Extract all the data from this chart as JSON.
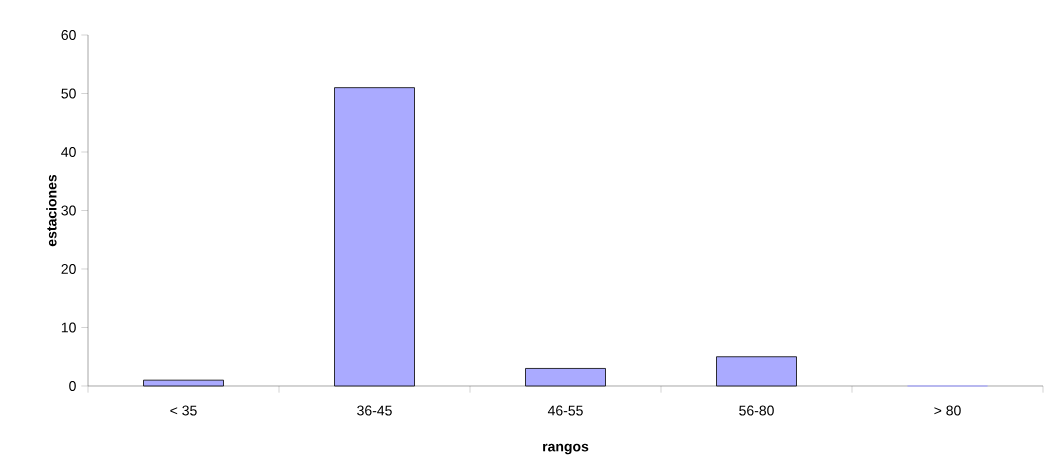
{
  "chart_data": {
    "type": "bar",
    "xlabel": "rangos",
    "ylabel": "estaciones",
    "categories": [
      "< 35",
      "36-45",
      "46-55",
      "56-80",
      "> 80"
    ],
    "values": [
      1,
      51,
      3,
      5,
      0
    ],
    "color": "#aaaaff",
    "ylim": [
      0,
      60
    ],
    "yticks": [
      0,
      10,
      20,
      30,
      40,
      50,
      60
    ]
  }
}
